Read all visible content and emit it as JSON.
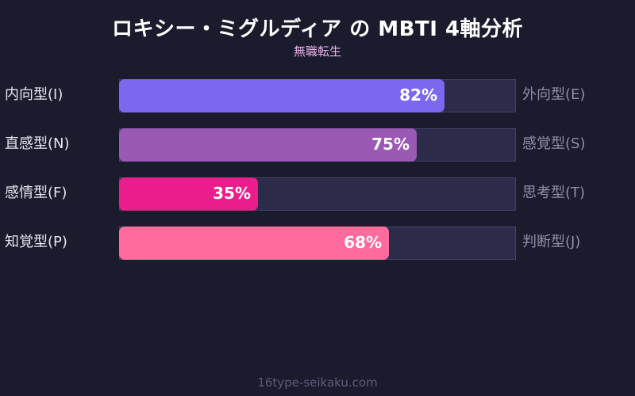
{
  "header": {
    "title": "ロキシー・ミグルディア の MBTI 4軸分析",
    "subtitle": "無職転生"
  },
  "footer": {
    "text": "16type-seikaku.com"
  },
  "colors": {
    "background": "#1b1b2e",
    "track": "#2d2b4a",
    "bar_IE": "#7b68ee",
    "bar_NS": "#9b59b6",
    "bar_FT": "#e91e8c",
    "bar_PJ": "#ff6b9d"
  },
  "rows": [
    {
      "left": "内向型(I)",
      "right": "外向型(E)",
      "value": 82,
      "label": "82%",
      "color": "#7b68ee"
    },
    {
      "left": "直感型(N)",
      "right": "感覚型(S)",
      "value": 75,
      "label": "75%",
      "color": "#9b59b6"
    },
    {
      "left": "感情型(F)",
      "right": "思考型(T)",
      "value": 35,
      "label": "35%",
      "color": "#e91e8c"
    },
    {
      "left": "知覚型(P)",
      "right": "判断型(J)",
      "value": 68,
      "label": "68%",
      "color": "#ff6b9d"
    }
  ],
  "chart_data": {
    "type": "bar",
    "orientation": "horizontal",
    "title": "ロキシー・ミグルディア の MBTI 4軸分析",
    "subtitle": "無職転生",
    "categories": [
      "内向型(I) / 外向型(E)",
      "直感型(N) / 感覚型(S)",
      "感情型(F) / 思考型(T)",
      "知覚型(P) / 判断型(J)"
    ],
    "left_labels": [
      "内向型(I)",
      "直感型(N)",
      "感情型(F)",
      "知覚型(P)"
    ],
    "right_labels": [
      "外向型(E)",
      "感覚型(S)",
      "思考型(T)",
      "判断型(J)"
    ],
    "values": [
      82,
      75,
      35,
      68
    ],
    "value_labels": [
      "82%",
      "75%",
      "35%",
      "68%"
    ],
    "xlim": [
      0,
      100
    ],
    "grid": false,
    "legend": "none",
    "source": "16type-seikaku.com"
  }
}
